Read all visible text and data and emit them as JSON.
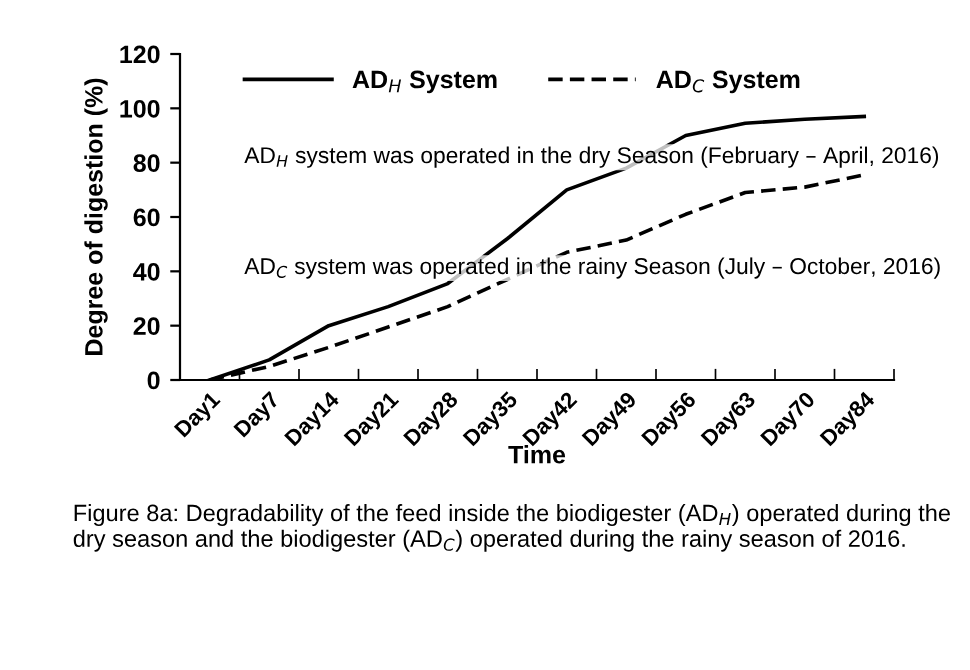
{
  "chart_data": {
    "type": "line",
    "xlabel": "Time",
    "ylabel": "Degree of digestion (%)",
    "categories": [
      "Day1",
      "Day7",
      "Day14",
      "Day21",
      "Day28",
      "Day35",
      "Day42",
      "Day49",
      "Day56",
      "Day63",
      "Day70",
      "Day84"
    ],
    "series": [
      {
        "name": "AD$_{H}$ System",
        "color": "#000000",
        "line_style": "solid",
        "values": [
          0,
          7.4,
          20,
          27,
          35.5,
          52,
          70,
          78,
          90,
          94.5,
          96,
          97
        ]
      },
      {
        "name": "AD$_{C}$ System",
        "color": "#000000",
        "line_style": "dashed",
        "values": [
          0,
          5,
          12,
          19.5,
          27,
          37,
          47,
          51.5,
          61,
          69,
          71,
          75.5
        ]
      }
    ],
    "ylim": [
      0,
      120
    ],
    "yticks": [
      0,
      20,
      40,
      60,
      80,
      100,
      120
    ],
    "grid": false,
    "legend": "top",
    "marker": "none",
    "annotations": [
      "AD$_{H}$ system was operated in the dry Season (February – April, 2016)",
      "AD$_{C}$ system was operated in the rainy Season (July – October, 2016)",
      "Figure 8a: Degradability of the feed inside the biodigester (AD$_{H}$) operated during the dry season and the biodigester (AD$_{C}$) operated during the rainy season of 2016."
    ]
  }
}
